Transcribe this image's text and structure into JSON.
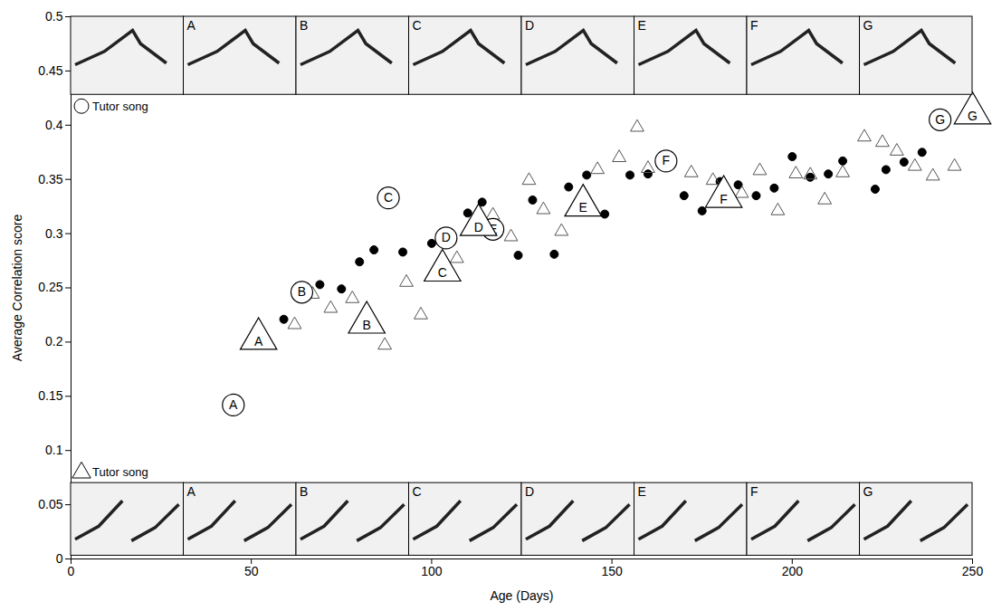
{
  "chart_data": {
    "type": "scatter",
    "x_label": "Age (Days)",
    "y_label": "Average Correlation score",
    "xlim": [
      0,
      250
    ],
    "xticks": [
      0,
      50,
      100,
      150,
      200,
      250
    ],
    "ylim": [
      0,
      0.5
    ],
    "yticks": [
      0,
      0.05,
      0.1,
      0.15,
      0.2,
      0.25,
      0.3,
      0.35,
      0.4,
      0.45,
      0.5
    ],
    "series": [
      {
        "marker": "circle",
        "color": "#000000",
        "x": [
          59,
          69,
          75,
          80,
          84,
          92,
          100,
          110,
          114,
          124,
          128,
          134,
          138,
          143,
          148,
          155,
          160,
          170,
          175,
          180,
          185,
          190,
          195,
          200,
          205,
          210,
          214,
          223,
          226,
          231,
          236
        ],
        "values": [
          0.221,
          0.253,
          0.249,
          0.274,
          0.285,
          0.283,
          0.291,
          0.319,
          0.329,
          0.28,
          0.331,
          0.281,
          0.343,
          0.354,
          0.318,
          0.354,
          0.355,
          0.335,
          0.321,
          0.348,
          0.345,
          0.335,
          0.342,
          0.371,
          0.352,
          0.355,
          0.367,
          0.341,
          0.359,
          0.366,
          0.375
        ]
      },
      {
        "marker": "triangle",
        "color": "#555555",
        "x": [
          62,
          67,
          72,
          78,
          87,
          93,
          97,
          107,
          117,
          122,
          127,
          131,
          136,
          146,
          152,
          157,
          160,
          172,
          178,
          186,
          191,
          196,
          201,
          205,
          209,
          214,
          220,
          225,
          229,
          234,
          239,
          245
        ],
        "values": [
          0.216,
          0.244,
          0.231,
          0.24,
          0.197,
          0.255,
          0.225,
          0.277,
          0.317,
          0.297,
          0.349,
          0.322,
          0.302,
          0.359,
          0.37,
          0.398,
          0.36,
          0.356,
          0.349,
          0.337,
          0.358,
          0.321,
          0.355,
          0.354,
          0.331,
          0.356,
          0.389,
          0.384,
          0.376,
          0.362,
          0.353,
          0.362
        ]
      },
      {
        "marker": "circle",
        "color": "#000000",
        "labels": [
          "A",
          "B",
          "C",
          "D",
          "E",
          "F",
          "G"
        ],
        "x": [
          45,
          64,
          88,
          104,
          117,
          165,
          241
        ],
        "values": [
          0.142,
          0.246,
          0.333,
          0.296,
          0.304,
          0.367,
          0.405
        ]
      },
      {
        "marker": "triangle",
        "color": "#000000",
        "labels": [
          "A",
          "B",
          "C",
          "D",
          "E",
          "F",
          "G"
        ],
        "x": [
          52,
          82,
          103,
          113,
          142,
          181,
          250
        ],
        "values": [
          0.203,
          0.218,
          0.266,
          0.308,
          0.326,
          0.334,
          0.411
        ]
      }
    ],
    "annotations": [
      {
        "text": "Tutor song",
        "marker": "circle"
      },
      {
        "text": "Tutor song",
        "marker": "triangle"
      }
    ],
    "spectrogram_labels": [
      null,
      "A",
      "B",
      "C",
      "D",
      "E",
      "F",
      "G"
    ]
  }
}
